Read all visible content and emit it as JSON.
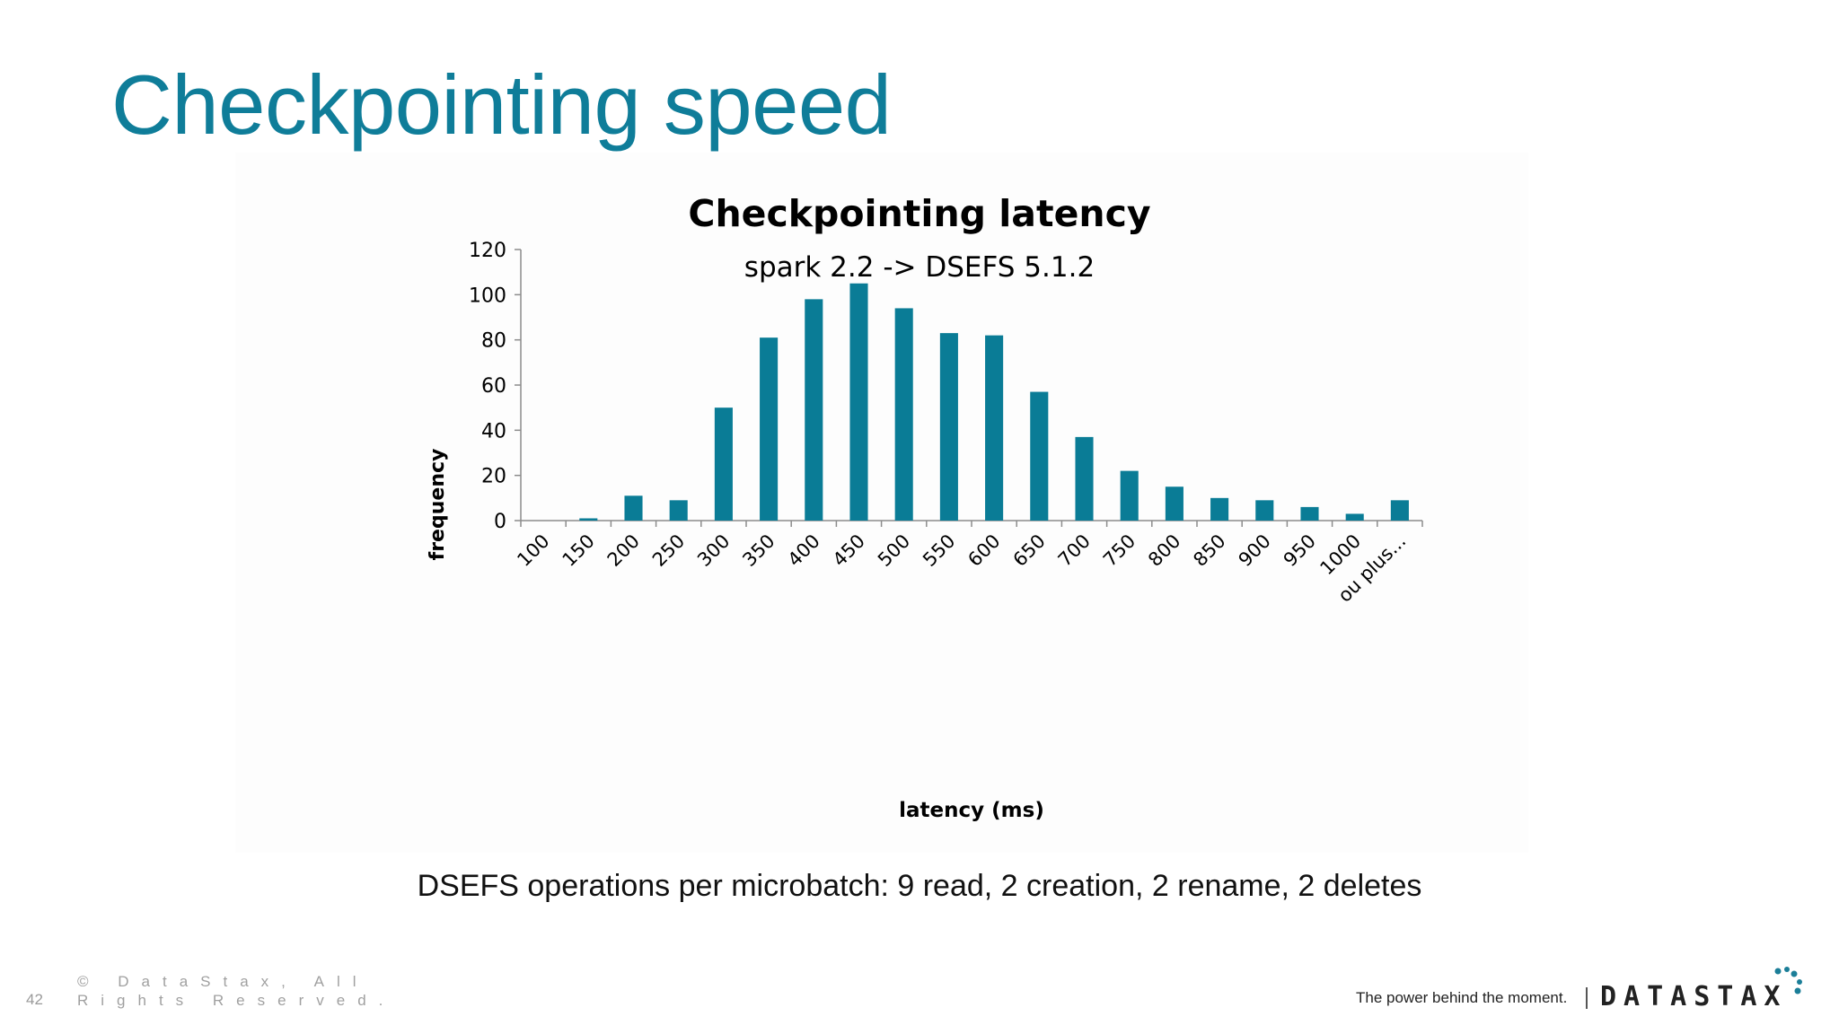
{
  "slide": {
    "title": "Checkpointing speed",
    "caption": "DSEFS operations per microbatch: 9 read, 2 creation, 2 rename, 2 deletes",
    "page_number": "42",
    "copyright_line1": "© DataStax, All",
    "copyright_line2": "Rights Reserved.",
    "tagline": "The power behind the moment.",
    "brand": "DATASTAX",
    "colors": {
      "title": "#0f7d99",
      "bar": "#0a7c96"
    }
  },
  "chart_data": {
    "type": "bar",
    "title": "Checkpointing latency",
    "subtitle": "spark 2.2 -> DSEFS 5.1.2",
    "xlabel": "latency (ms)",
    "ylabel": "frequency",
    "ylim": [
      0,
      120
    ],
    "yticks": [
      0,
      20,
      40,
      60,
      80,
      100,
      120
    ],
    "grid": false,
    "categories": [
      "100",
      "150",
      "200",
      "250",
      "300",
      "350",
      "400",
      "450",
      "500",
      "550",
      "600",
      "650",
      "700",
      "750",
      "800",
      "850",
      "900",
      "950",
      "1000",
      "ou plus..."
    ],
    "values": [
      0,
      1,
      11,
      9,
      50,
      81,
      98,
      105,
      94,
      83,
      82,
      57,
      37,
      22,
      15,
      10,
      9,
      6,
      3,
      9
    ]
  }
}
